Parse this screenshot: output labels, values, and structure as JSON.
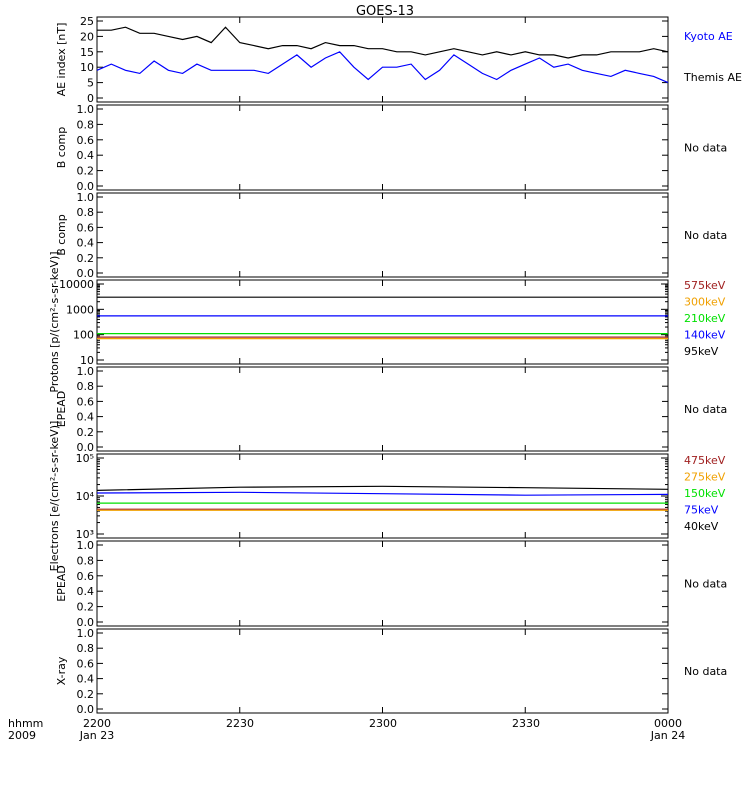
{
  "title": "GOES-13",
  "footer": {
    "time_label": "hhmm",
    "year_label": "2009",
    "x_ticks": [
      "2200",
      "2230",
      "2300",
      "2330",
      "0000"
    ],
    "date_start": "Jan 23",
    "date_end": "Jan 24"
  },
  "colors": {
    "black": "#000000",
    "blue": "#0000ff",
    "green": "#00e000",
    "orange": "#f0a000",
    "red": "#b00000",
    "brown": "#a02020"
  },
  "chart_data": [
    {
      "type": "line",
      "ylabel": "AE index [nT]",
      "ylim": [
        0,
        25
      ],
      "yticks": [
        "0",
        "5",
        "10",
        "15",
        "20",
        "25"
      ],
      "x_minutes": [
        0,
        3,
        6,
        9,
        12,
        15,
        18,
        21,
        24,
        27,
        30,
        33,
        36,
        39,
        42,
        45,
        48,
        51,
        54,
        57,
        60,
        63,
        66,
        69,
        72,
        75,
        78,
        81,
        84,
        87,
        90,
        93,
        96,
        99,
        102,
        105,
        108,
        111,
        114,
        117,
        120
      ],
      "series": [
        {
          "name": "Kyoto AE",
          "color": "#0000ff",
          "values": [
            9,
            11,
            9,
            8,
            12,
            9,
            8,
            11,
            9,
            9,
            9,
            9,
            8,
            11,
            14,
            10,
            13,
            15,
            10,
            6,
            10,
            10,
            11,
            6,
            9,
            14,
            11,
            8,
            6,
            9,
            11,
            13,
            10,
            11,
            9,
            8,
            7,
            9,
            8,
            7,
            5
          ]
        },
        {
          "name": "Themis AE",
          "color": "#000000",
          "values": [
            22,
            22,
            23,
            21,
            21,
            20,
            19,
            20,
            18,
            23,
            18,
            17,
            16,
            17,
            17,
            16,
            18,
            17,
            17,
            16,
            16,
            15,
            15,
            14,
            15,
            16,
            15,
            14,
            15,
            14,
            15,
            14,
            14,
            13,
            14,
            14,
            15,
            15,
            15,
            16,
            15
          ]
        }
      ]
    },
    {
      "type": "line",
      "ylabel": "Protons [p/(cm²-s-sr-keV)]",
      "scale": "log",
      "ylim": [
        10,
        10000
      ],
      "yticks": [
        "10",
        "100",
        "1000",
        "10000"
      ],
      "series": [
        {
          "name": "575keV",
          "color": "#a02020",
          "values": [
            80,
            80,
            80,
            80,
            80
          ]
        },
        {
          "name": "300keV",
          "color": "#f0a000",
          "values": [
            70,
            70,
            70,
            70,
            70
          ]
        },
        {
          "name": "210keV",
          "color": "#00e000",
          "values": [
            110,
            110,
            110,
            110,
            110
          ]
        },
        {
          "name": "140keV",
          "color": "#0000ff",
          "values": [
            550,
            550,
            550,
            550,
            550
          ]
        },
        {
          "name": "95keV",
          "color": "#000000",
          "values": [
            3000,
            3000,
            3000,
            3000,
            3000
          ]
        }
      ]
    },
    {
      "type": "line",
      "ylabel": "Electrons [e/(cm²-s-sr-keV)]",
      "scale": "log",
      "ylim": [
        1000,
        100000
      ],
      "yticks": [
        "10³",
        "10⁴",
        "10⁵"
      ],
      "series": [
        {
          "name": "475keV",
          "color": "#a02020",
          "values": [
            4500,
            4500,
            4500,
            4500,
            4500
          ]
        },
        {
          "name": "275keV",
          "color": "#f0a000",
          "values": [
            4200,
            4200,
            4200,
            4200,
            4200
          ]
        },
        {
          "name": "150keV",
          "color": "#00e000",
          "values": [
            6500,
            6500,
            6500,
            6500,
            6500
          ]
        },
        {
          "name": "75keV",
          "color": "#0000ff",
          "values": [
            12000,
            12500,
            11500,
            10500,
            11000
          ]
        },
        {
          "name": "40keV",
          "color": "#000000",
          "values": [
            14000,
            17000,
            18000,
            16500,
            15000
          ]
        }
      ]
    }
  ],
  "empty_panels": [
    {
      "ylabel": "B comp",
      "note": "No data"
    },
    {
      "ylabel": "B comp",
      "note": "No data"
    },
    {
      "ylabel": "EPEAD",
      "note": "No data"
    },
    {
      "ylabel": "EPEAD",
      "note": "No data"
    },
    {
      "ylabel": "X-ray",
      "note": "No data"
    }
  ],
  "linear_ticks": [
    "0.0",
    "0.2",
    "0.4",
    "0.6",
    "0.8",
    "1.0"
  ]
}
